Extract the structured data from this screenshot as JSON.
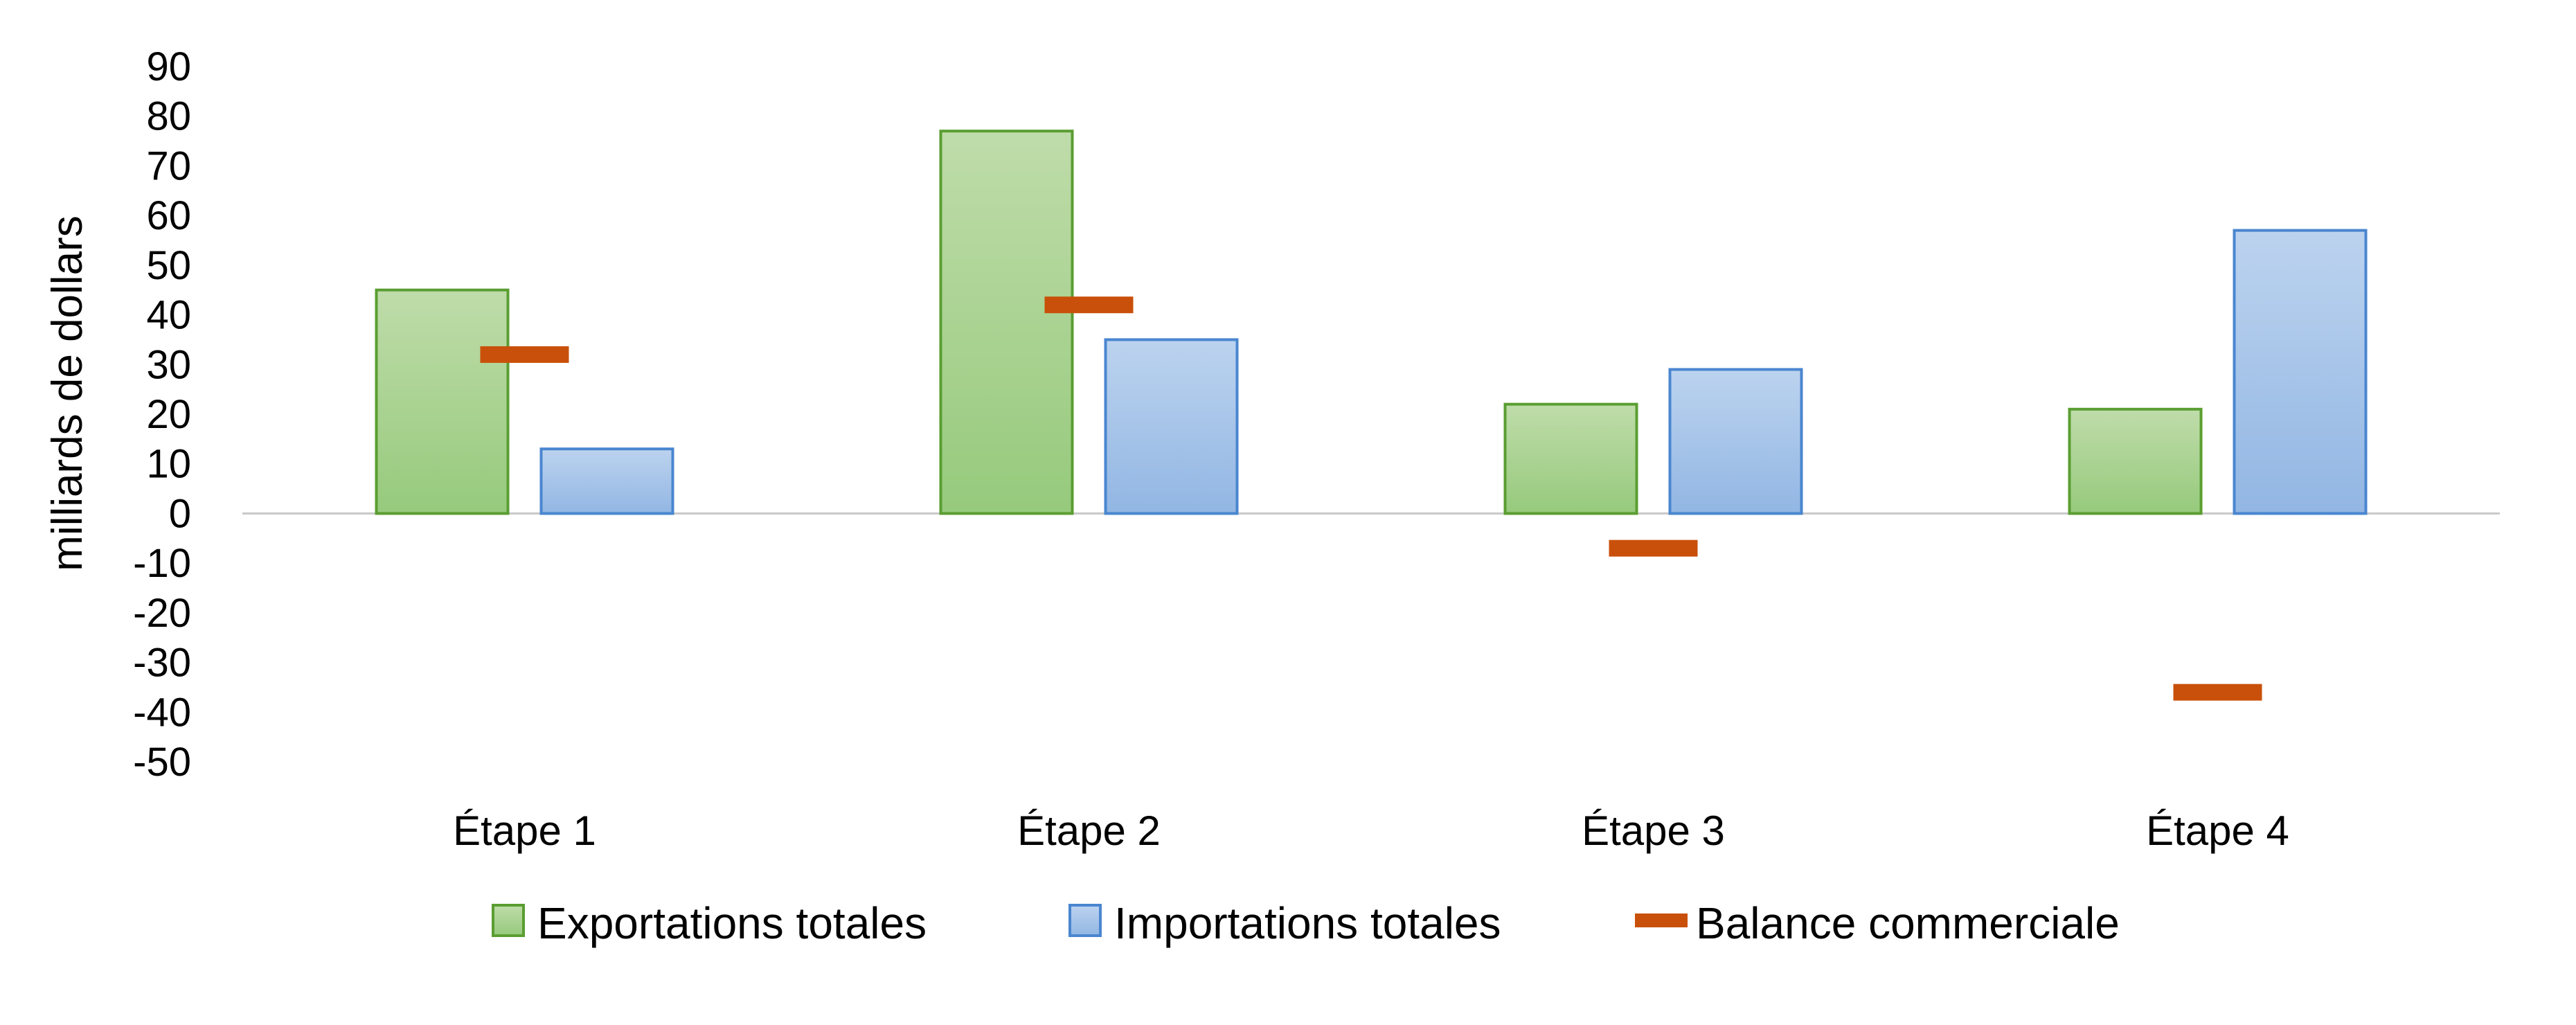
{
  "chart_data": {
    "type": "bar",
    "title": "",
    "xlabel": "",
    "ylabel": "milliards de dollars",
    "ylim": [
      -50,
      90
    ],
    "ytick_step": 10,
    "yticks": [
      "90",
      "80",
      "70",
      "60",
      "50",
      "40",
      "30",
      "20",
      "10",
      "0",
      "-10",
      "-20",
      "-30",
      "-40",
      "-50"
    ],
    "grid": false,
    "legend_position": "bottom",
    "categories": [
      "Étape 1",
      "Étape 2",
      "Étape 3",
      "Étape 4"
    ],
    "series": [
      {
        "name": "Exportations totales",
        "kind": "bar",
        "color": "#9fd08a",
        "stroke": "#5a9e32",
        "values": [
          45,
          77,
          22,
          21
        ]
      },
      {
        "name": "Importations totales",
        "kind": "bar",
        "color": "#9dc0e8",
        "stroke": "#4a86d0",
        "values": [
          13,
          35,
          29,
          57
        ]
      },
      {
        "name": "Balance commerciale",
        "kind": "marker",
        "color": "#c9500a",
        "values": [
          32,
          42,
          -7,
          -36
        ]
      }
    ]
  }
}
